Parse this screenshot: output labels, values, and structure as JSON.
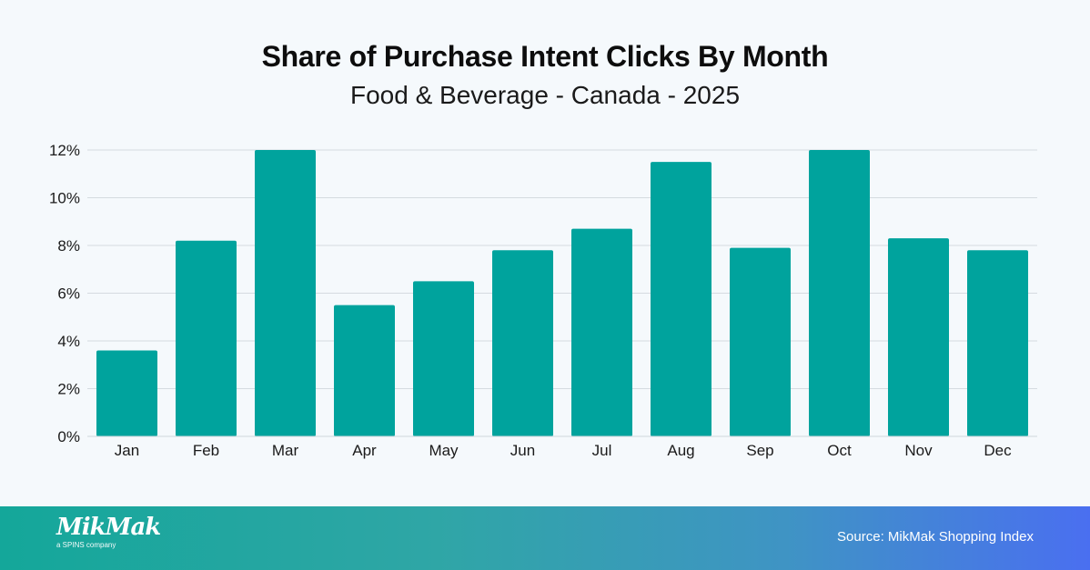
{
  "chart_data": {
    "type": "bar",
    "title": "Share of Purchase Intent Clicks By Month",
    "subtitle": "Food & Beverage - Canada - 2025",
    "categories": [
      "Jan",
      "Feb",
      "Mar",
      "Apr",
      "May",
      "Jun",
      "Jul",
      "Aug",
      "Sep",
      "Oct",
      "Nov",
      "Dec"
    ],
    "values": [
      3.6,
      8.2,
      12.0,
      5.5,
      6.5,
      7.8,
      8.7,
      11.5,
      7.9,
      12.0,
      8.3,
      7.8
    ],
    "ylim": [
      0,
      12
    ],
    "yticks": [
      0,
      2,
      4,
      6,
      8,
      10,
      12
    ],
    "ytick_suffix": "%",
    "xlabel": "",
    "ylabel": "",
    "grid": true,
    "bar_color": "#00a39d"
  },
  "footer": {
    "logo_text": "MikMak",
    "logo_tagline": "a SPINS company",
    "source": "Source: MikMak Shopping Index"
  }
}
